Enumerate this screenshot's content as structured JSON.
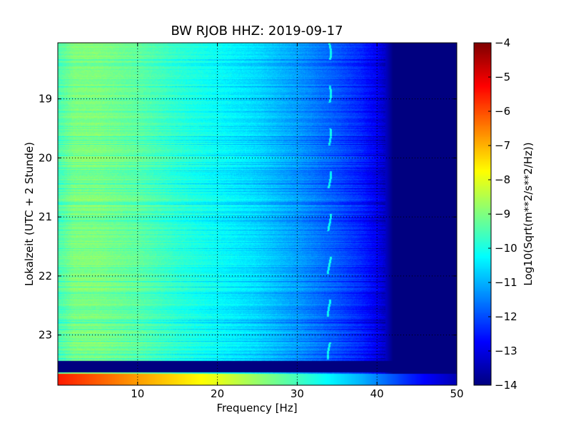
{
  "chart_data": {
    "type": "heatmap",
    "title": "BW RJOB HHZ: 2019-09-17",
    "xlabel": "Frequency [Hz]",
    "ylabel": "Lokalzeit (UTC + 2 Stunde)",
    "xlim": [
      0,
      50
    ],
    "ylim_hours": [
      18.05,
      23.85
    ],
    "x_ticks": [
      10,
      20,
      30,
      40,
      50
    ],
    "y_ticks": [
      19,
      20,
      21,
      22,
      23
    ],
    "grid": true,
    "colormap": "jet",
    "colorbar": {
      "label": "Log10(Sqrt(m**2/s**2/Hz))",
      "range": [
        -14,
        -4
      ],
      "ticks": [
        -4,
        -5,
        -6,
        -7,
        -8,
        -9,
        -10,
        -11,
        -12,
        -13,
        -14
      ]
    },
    "spectrum_profile": {
      "frequency_hz": [
        0,
        2,
        5,
        10,
        15,
        20,
        25,
        30,
        35,
        38,
        40,
        41,
        42,
        50
      ],
      "log_amplitude": [
        -9.5,
        -9.0,
        -9.0,
        -9.3,
        -9.8,
        -10.2,
        -10.6,
        -11.2,
        -11.9,
        -12.4,
        -12.9,
        -13.3,
        -14,
        -14
      ]
    },
    "narrowband_line_hz": 34,
    "low_rows": [
      {
        "hour_start": 23.43,
        "hour_end": 23.63,
        "note": "data gap"
      }
    ],
    "high_rows": [
      {
        "hour_start": 23.65,
        "hour_end": 23.85
      }
    ]
  }
}
